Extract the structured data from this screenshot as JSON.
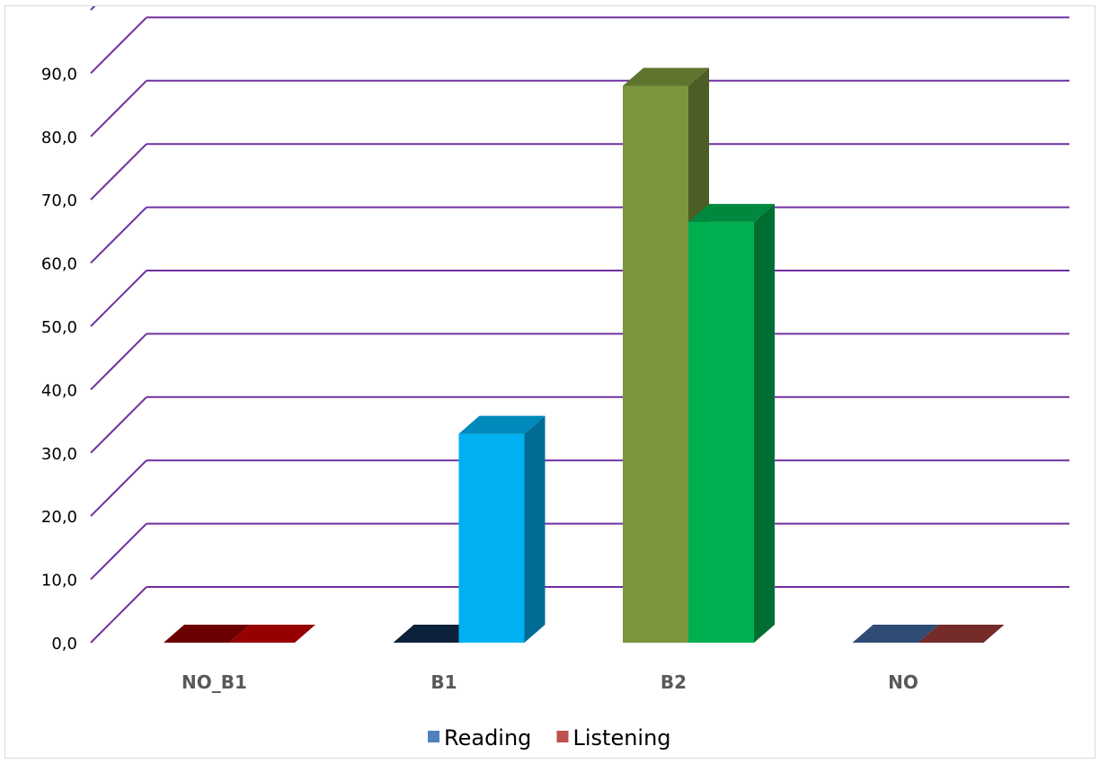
{
  "chart_data": {
    "type": "bar",
    "style": "3d-clustered-column",
    "categories": [
      "NO_B1",
      "B1",
      "B2",
      "NO"
    ],
    "series": [
      {
        "name": "Reading",
        "legend_color": "#4f81bd",
        "values": [
          0.0,
          0.0,
          88.0,
          0.0
        ],
        "bar_colors": [
          "#8b0000",
          "#0f2a4a",
          "#7a963c",
          "#3b6295"
        ]
      },
      {
        "name": "Listening",
        "legend_color": "#c0504d",
        "values": [
          0.0,
          33.0,
          66.5,
          0.0
        ],
        "bar_colors": [
          "#c00000",
          "#00b0f0",
          "#00b050",
          "#953735"
        ]
      }
    ],
    "y_ticks": [
      "0,0",
      "10,0",
      "20,0",
      "30,0",
      "40,0",
      "50,0",
      "60,0",
      "70,0",
      "80,0",
      "90,0"
    ],
    "ylim": [
      0,
      90
    ],
    "gridlines": true,
    "gridline_color": "#7030a0",
    "legend_position": "bottom",
    "xlabel": "",
    "ylabel": "",
    "title": ""
  }
}
